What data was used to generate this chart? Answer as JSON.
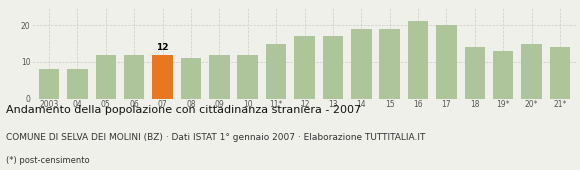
{
  "categories": [
    "2003",
    "04",
    "05",
    "06",
    "07",
    "08",
    "09",
    "10",
    "11*",
    "12",
    "13",
    "14",
    "15",
    "16",
    "17",
    "18",
    "19*",
    "20*",
    "21*"
  ],
  "values": [
    8,
    8,
    12,
    12,
    12,
    11,
    12,
    12,
    15,
    17,
    17,
    19,
    19,
    21,
    20,
    14,
    13,
    15,
    14
  ],
  "highlight_index": 4,
  "highlight_value_label": "12",
  "bar_color_normal": "#aec49a",
  "bar_color_highlight": "#e87722",
  "background_color": "#f0f0eb",
  "grid_color": "#cccccc",
  "title": "Andamento della popolazione con cittadinanza straniera - 2007",
  "subtitle": "COMUNE DI SELVA DEI MOLINI (BZ) · Dati ISTAT 1° gennaio 2007 · Elaborazione TUTTITALIA.IT",
  "footnote": "(*) post-censimento",
  "ylim": [
    0,
    25
  ],
  "yticks": [
    0,
    10,
    20
  ],
  "title_fontsize": 8.0,
  "subtitle_fontsize": 6.5,
  "footnote_fontsize": 6.0,
  "tick_fontsize": 5.5,
  "label_fontsize": 6.5
}
